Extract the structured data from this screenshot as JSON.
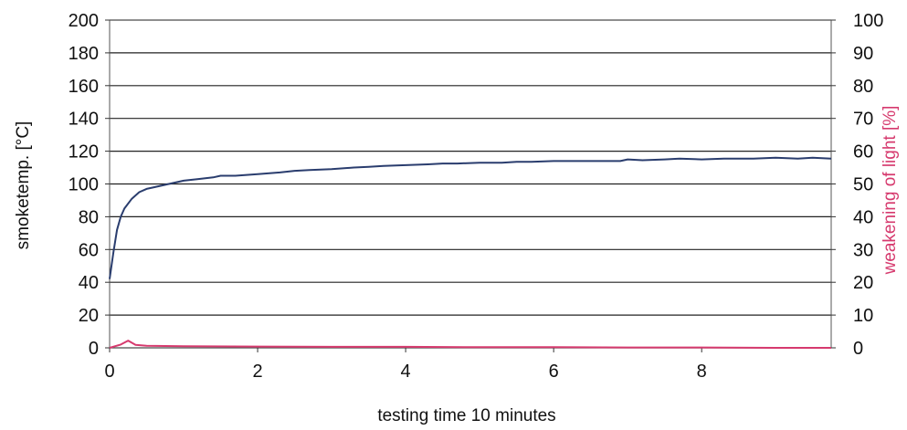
{
  "chart_data": {
    "type": "line",
    "title": "",
    "xlabel": "testing time 10 minutes",
    "ylabel_left": "smoketemp. [°C]",
    "ylabel_right": "weakening of light [%]",
    "xlim": [
      0,
      9.75
    ],
    "ylim_left": [
      0,
      200
    ],
    "ylim_right": [
      0,
      100
    ],
    "x_ticks": [
      0,
      2,
      4,
      6,
      8
    ],
    "y_left_ticks": [
      0,
      20,
      40,
      60,
      80,
      100,
      120,
      140,
      160,
      180,
      200
    ],
    "y_right_ticks": [
      0,
      10,
      20,
      30,
      40,
      50,
      60,
      70,
      80,
      90,
      100
    ],
    "grid": true,
    "series": [
      {
        "axis": "left",
        "color": "#2a3d6e",
        "x": [
          0,
          0.05,
          0.1,
          0.15,
          0.2,
          0.3,
          0.4,
          0.5,
          0.6,
          0.8,
          1.0,
          1.2,
          1.4,
          1.5,
          1.7,
          2.0,
          2.3,
          2.5,
          2.7,
          3.0,
          3.3,
          3.5,
          3.7,
          4.0,
          4.3,
          4.5,
          4.7,
          5.0,
          5.3,
          5.5,
          5.7,
          6.0,
          6.3,
          6.5,
          6.7,
          6.9,
          7.0,
          7.2,
          7.5,
          7.7,
          8.0,
          8.3,
          8.5,
          8.7,
          9.0,
          9.3,
          9.5,
          9.75
        ],
        "values": [
          42,
          58,
          72,
          80,
          85,
          91,
          95,
          97,
          98,
          100,
          102,
          103,
          104,
          105,
          105,
          106,
          107,
          108,
          108.5,
          109,
          110,
          110.5,
          111,
          111.5,
          112,
          112.5,
          112.5,
          113,
          113,
          113.5,
          113.5,
          114,
          114,
          114,
          114,
          114,
          115,
          114.5,
          115,
          115.5,
          115,
          115.5,
          115.5,
          115.5,
          116,
          115.5,
          116,
          115.5
        ]
      },
      {
        "axis": "right",
        "color": "#d63a6e",
        "x": [
          0,
          0.15,
          0.25,
          0.35,
          0.5,
          1.0,
          2.0,
          3.0,
          4.0,
          5.0,
          6.0,
          7.0,
          8.0,
          9.0,
          9.75
        ],
        "values": [
          0,
          1,
          2.2,
          0.9,
          0.6,
          0.5,
          0.4,
          0.3,
          0.3,
          0.2,
          0.2,
          0.1,
          0.1,
          0,
          0
        ]
      }
    ]
  }
}
